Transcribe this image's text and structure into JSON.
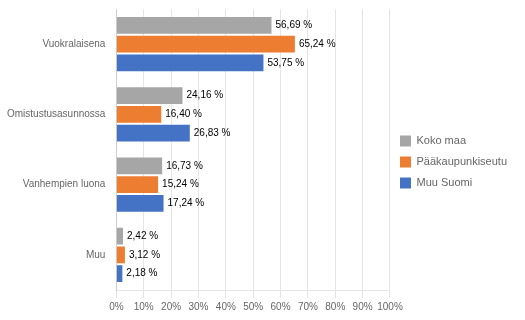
{
  "chart_data": {
    "type": "bar",
    "orientation": "horizontal",
    "categories": [
      "Vuokralaisena",
      "Omistustusasunnossa",
      "Vanhempien luona",
      "Muu"
    ],
    "series": [
      {
        "name": "Koko maa",
        "color": "#a6a6a6",
        "values": [
          56.69,
          24.16,
          16.73,
          2.42
        ],
        "value_labels": [
          "56,69 %",
          "24,16 %",
          "16,73 %",
          "2,42 %"
        ]
      },
      {
        "name": "Pääkaupunkiseutu",
        "color": "#ed7d31",
        "values": [
          65.24,
          16.4,
          15.24,
          3.12
        ],
        "value_labels": [
          "65,24 %",
          "16,40 %",
          "15,24 %",
          "3,12 %"
        ]
      },
      {
        "name": "Muu Suomi",
        "color": "#4472c4",
        "values": [
          53.75,
          26.83,
          17.24,
          2.18
        ],
        "value_labels": [
          "53,75 %",
          "26,83 %",
          "17,24 %",
          "2,18 %"
        ]
      }
    ],
    "xlim": [
      0,
      100
    ],
    "xticks": [
      {
        "value": 0,
        "label": "0%"
      },
      {
        "value": 10,
        "label": "10%"
      },
      {
        "value": 20,
        "label": "20%"
      },
      {
        "value": 30,
        "label": "30%"
      },
      {
        "value": 40,
        "label": "40%"
      },
      {
        "value": 50,
        "label": "50%"
      },
      {
        "value": 60,
        "label": "60%"
      },
      {
        "value": 70,
        "label": "70%"
      },
      {
        "value": 80,
        "label": "80%"
      },
      {
        "value": 90,
        "label": "90%"
      },
      {
        "value": 100,
        "label": "100%"
      }
    ],
    "grid": true,
    "legend": "right",
    "data_labels": true
  }
}
